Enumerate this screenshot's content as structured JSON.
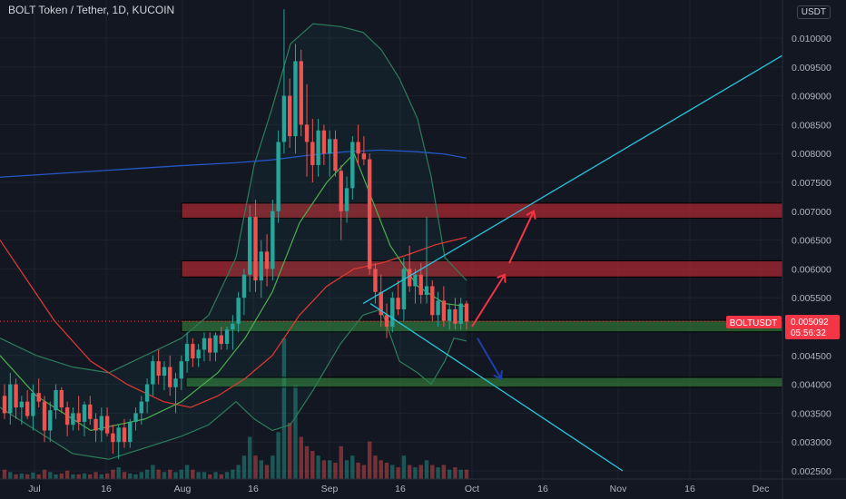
{
  "header": {
    "symbol_title": "BOLT Token / Tether, 1D, KUCOIN",
    "currency_button": "USDT"
  },
  "price_badge": {
    "symbol": "BOLTUSDT",
    "price": "0.005092",
    "countdown": "05:56:32"
  },
  "colors": {
    "background": "#131722",
    "up": "#26a69a",
    "down": "#ef5350",
    "resistance_zone": "#8b2a2e",
    "support_zone": "#2e6b2f",
    "trend_line": "#26c6da",
    "bear_arrow": "#1e3fae",
    "bull_arrow": "#f23645",
    "sma_200": "#2457c5",
    "ema_red": "#e53935",
    "ema_green": "#4caf50"
  },
  "chart_data": {
    "type": "candlestick",
    "y_axis": {
      "min": 0.0025,
      "max": 0.0105,
      "ticks": [
        "0.010000",
        "0.009500",
        "0.009000",
        "0.008500",
        "0.008000",
        "0.007500",
        "0.007000",
        "0.006500",
        "0.006000",
        "0.005500",
        "0.004500",
        "0.004000",
        "0.003500",
        "0.003000",
        "0.002500"
      ]
    },
    "x_axis": {
      "ticks": [
        "Jul",
        "16",
        "Aug",
        "16",
        "Sep",
        "16",
        "Oct",
        "16",
        "Nov",
        "16",
        "Dec"
      ]
    },
    "zones": [
      {
        "kind": "resistance",
        "from": 0.00688,
        "to": 0.00714
      },
      {
        "kind": "resistance",
        "from": 0.00586,
        "to": 0.00614
      },
      {
        "kind": "support",
        "from": 0.00491,
        "to": 0.00511
      },
      {
        "kind": "support",
        "from": 0.00395,
        "to": 0.00412
      }
    ],
    "candles_ohlc": [
      [
        0.0038,
        0.004,
        0.0034,
        0.0035
      ],
      [
        0.0035,
        0.0042,
        0.0033,
        0.004
      ],
      [
        0.004,
        0.0041,
        0.0034,
        0.0036
      ],
      [
        0.0036,
        0.0038,
        0.0033,
        0.0037
      ],
      [
        0.0037,
        0.0039,
        0.0034,
        0.00345
      ],
      [
        0.00345,
        0.004,
        0.0032,
        0.00385
      ],
      [
        0.00385,
        0.0041,
        0.0036,
        0.0037
      ],
      [
        0.0037,
        0.0038,
        0.003,
        0.0032
      ],
      [
        0.0032,
        0.0037,
        0.003,
        0.00355
      ],
      [
        0.00355,
        0.004,
        0.0034,
        0.0039
      ],
      [
        0.0039,
        0.00395,
        0.0035,
        0.0036
      ],
      [
        0.0036,
        0.0037,
        0.0031,
        0.0033
      ],
      [
        0.0033,
        0.0036,
        0.0032,
        0.0035
      ],
      [
        0.0035,
        0.0038,
        0.0032,
        0.00335
      ],
      [
        0.00335,
        0.0037,
        0.0031,
        0.00365
      ],
      [
        0.00365,
        0.0038,
        0.0033,
        0.0034
      ],
      [
        0.0034,
        0.0035,
        0.003,
        0.0032
      ],
      [
        0.0032,
        0.0036,
        0.003,
        0.00345
      ],
      [
        0.00345,
        0.0036,
        0.0031,
        0.00315
      ],
      [
        0.00315,
        0.0033,
        0.0028,
        0.003
      ],
      [
        0.003,
        0.0033,
        0.0027,
        0.00325
      ],
      [
        0.00325,
        0.0034,
        0.0029,
        0.003
      ],
      [
        0.003,
        0.0034,
        0.0029,
        0.00335
      ],
      [
        0.00335,
        0.0036,
        0.0032,
        0.0035
      ],
      [
        0.0035,
        0.0038,
        0.0033,
        0.0037
      ],
      [
        0.0037,
        0.0041,
        0.0035,
        0.004
      ],
      [
        0.004,
        0.0045,
        0.0038,
        0.0044
      ],
      [
        0.0044,
        0.0046,
        0.004,
        0.00415
      ],
      [
        0.00415,
        0.0044,
        0.0039,
        0.0043
      ],
      [
        0.0043,
        0.0045,
        0.0038,
        0.00395
      ],
      [
        0.00395,
        0.0042,
        0.0035,
        0.0041
      ],
      [
        0.0041,
        0.0045,
        0.0039,
        0.0044
      ],
      [
        0.0044,
        0.0049,
        0.0042,
        0.0047
      ],
      [
        0.0047,
        0.0048,
        0.0043,
        0.00445
      ],
      [
        0.00445,
        0.0047,
        0.0043,
        0.0046
      ],
      [
        0.0046,
        0.0049,
        0.0044,
        0.0048
      ],
      [
        0.0048,
        0.0049,
        0.0044,
        0.00455
      ],
      [
        0.00455,
        0.0049,
        0.0044,
        0.00485
      ],
      [
        0.00485,
        0.005,
        0.0046,
        0.0047
      ],
      [
        0.0047,
        0.005,
        0.0046,
        0.00495
      ],
      [
        0.00495,
        0.0052,
        0.0046,
        0.00505
      ],
      [
        0.00505,
        0.0056,
        0.0049,
        0.0055
      ],
      [
        0.0055,
        0.006,
        0.0052,
        0.0059
      ],
      [
        0.0059,
        0.0071,
        0.0056,
        0.0069
      ],
      [
        0.0069,
        0.0072,
        0.0056,
        0.0058
      ],
      [
        0.0058,
        0.0065,
        0.0055,
        0.0063
      ],
      [
        0.0063,
        0.0066,
        0.0057,
        0.006
      ],
      [
        0.006,
        0.0072,
        0.0058,
        0.007
      ],
      [
        0.007,
        0.0084,
        0.0068,
        0.0082
      ],
      [
        0.0082,
        0.0105,
        0.008,
        0.009
      ],
      [
        0.009,
        0.0093,
        0.0081,
        0.0083
      ],
      [
        0.0083,
        0.0099,
        0.008,
        0.0096
      ],
      [
        0.0096,
        0.0098,
        0.0083,
        0.0085
      ],
      [
        0.0085,
        0.0092,
        0.0076,
        0.0082
      ],
      [
        0.0082,
        0.0086,
        0.0075,
        0.0078
      ],
      [
        0.0078,
        0.0086,
        0.0076,
        0.0084
      ],
      [
        0.0084,
        0.0085,
        0.0078,
        0.008
      ],
      [
        0.008,
        0.0084,
        0.0076,
        0.00825
      ],
      [
        0.00825,
        0.0084,
        0.0076,
        0.0077
      ],
      [
        0.0077,
        0.0078,
        0.0065,
        0.007
      ],
      [
        0.007,
        0.0076,
        0.0068,
        0.0074
      ],
      [
        0.0074,
        0.0083,
        0.0072,
        0.0082
      ],
      [
        0.0082,
        0.0085,
        0.0078,
        0.008
      ],
      [
        0.008,
        0.0083,
        0.0078,
        0.0079
      ],
      [
        0.0079,
        0.008,
        0.0059,
        0.006
      ],
      [
        0.006,
        0.0061,
        0.0054,
        0.0056
      ],
      [
        0.0056,
        0.0059,
        0.005,
        0.0052
      ],
      [
        0.0052,
        0.0054,
        0.0048,
        0.005
      ],
      [
        0.005,
        0.0056,
        0.0049,
        0.0055
      ],
      [
        0.0055,
        0.0058,
        0.0052,
        0.0053
      ],
      [
        0.0053,
        0.0062,
        0.0051,
        0.006
      ],
      [
        0.006,
        0.0064,
        0.0056,
        0.0057
      ],
      [
        0.0057,
        0.006,
        0.0054,
        0.0059
      ],
      [
        0.0059,
        0.0061,
        0.0054,
        0.00555
      ],
      [
        0.00555,
        0.0069,
        0.0054,
        0.0057
      ],
      [
        0.0057,
        0.0058,
        0.0051,
        0.0052
      ],
      [
        0.0052,
        0.0056,
        0.005,
        0.00545
      ],
      [
        0.00545,
        0.0057,
        0.005,
        0.0051
      ],
      [
        0.0051,
        0.0054,
        0.00495,
        0.0053
      ],
      [
        0.0053,
        0.0055,
        0.00495,
        0.00505
      ],
      [
        0.00505,
        0.0055,
        0.00495,
        0.0054
      ],
      [
        0.0054,
        0.00545,
        0.00495,
        0.00509
      ]
    ],
    "volume": [
      0.2,
      0.15,
      0.1,
      0.12,
      0.1,
      0.14,
      0.1,
      0.2,
      0.15,
      0.1,
      0.12,
      0.18,
      0.1,
      0.1,
      0.12,
      0.1,
      0.15,
      0.1,
      0.12,
      0.2,
      0.25,
      0.15,
      0.12,
      0.1,
      0.15,
      0.2,
      0.3,
      0.2,
      0.15,
      0.2,
      0.15,
      0.2,
      0.3,
      0.2,
      0.15,
      0.15,
      0.1,
      0.15,
      0.1,
      0.15,
      0.2,
      0.3,
      0.5,
      0.9,
      0.5,
      0.4,
      0.3,
      0.5,
      1.0,
      3.0,
      1.2,
      2.0,
      0.9,
      0.7,
      0.6,
      0.5,
      0.4,
      0.4,
      0.35,
      0.7,
      0.4,
      0.5,
      0.35,
      0.3,
      0.8,
      0.5,
      0.4,
      0.35,
      0.3,
      0.25,
      0.5,
      0.3,
      0.25,
      0.3,
      0.4,
      0.3,
      0.25,
      0.3,
      0.2,
      0.25,
      0.2,
      0.2
    ],
    "sma_200": [
      [
        0,
        0.00759
      ],
      [
        40,
        0.00763
      ],
      [
        120,
        0.00771
      ],
      [
        200,
        0.00779
      ],
      [
        260,
        0.00784
      ],
      [
        300,
        0.00789
      ],
      [
        340,
        0.00797
      ],
      [
        380,
        0.00803
      ],
      [
        420,
        0.00806
      ],
      [
        460,
        0.00803
      ],
      [
        490,
        0.00799
      ],
      [
        514,
        0.00792
      ]
    ],
    "ema_red": [
      [
        0,
        0.0065
      ],
      [
        30,
        0.0058
      ],
      [
        60,
        0.0051
      ],
      [
        100,
        0.0044
      ],
      [
        140,
        0.004
      ],
      [
        180,
        0.0037
      ],
      [
        210,
        0.0036
      ],
      [
        240,
        0.0038
      ],
      [
        270,
        0.0041
      ],
      [
        300,
        0.0045
      ],
      [
        330,
        0.0052
      ],
      [
        360,
        0.0057
      ],
      [
        390,
        0.006
      ],
      [
        420,
        0.0061
      ],
      [
        450,
        0.00625
      ],
      [
        480,
        0.00642
      ],
      [
        514,
        0.00655
      ]
    ],
    "ema_green": [
      [
        0,
        0.0045
      ],
      [
        40,
        0.0038
      ],
      [
        100,
        0.0032
      ],
      [
        160,
        0.0034
      ],
      [
        200,
        0.0037
      ],
      [
        240,
        0.0042
      ],
      [
        270,
        0.0048
      ],
      [
        300,
        0.0056
      ],
      [
        330,
        0.0068
      ],
      [
        360,
        0.0075
      ],
      [
        390,
        0.008
      ],
      [
        410,
        0.0072
      ],
      [
        430,
        0.0064
      ],
      [
        460,
        0.0057
      ],
      [
        490,
        0.0054
      ],
      [
        514,
        0.00535
      ]
    ],
    "bb_upper": [
      [
        0,
        0.0048
      ],
      [
        40,
        0.0045
      ],
      [
        80,
        0.0043
      ],
      [
        120,
        0.0042
      ],
      [
        160,
        0.0045
      ],
      [
        200,
        0.0048
      ],
      [
        230,
        0.0052
      ],
      [
        260,
        0.0062
      ],
      [
        280,
        0.0078
      ],
      [
        300,
        0.0088
      ],
      [
        320,
        0.0099
      ],
      [
        345,
        0.01025
      ],
      [
        375,
        0.0102
      ],
      [
        400,
        0.0101
      ],
      [
        420,
        0.0098
      ],
      [
        440,
        0.0093
      ],
      [
        460,
        0.0086
      ],
      [
        475,
        0.0076
      ],
      [
        490,
        0.0062
      ],
      [
        514,
        0.0058
      ]
    ],
    "bb_lower": [
      [
        0,
        0.0036
      ],
      [
        40,
        0.0032
      ],
      [
        80,
        0.0028
      ],
      [
        120,
        0.0027
      ],
      [
        160,
        0.0029
      ],
      [
        200,
        0.0031
      ],
      [
        230,
        0.0033
      ],
      [
        260,
        0.0037
      ],
      [
        280,
        0.0034
      ],
      [
        300,
        0.0032
      ],
      [
        320,
        0.0033
      ],
      [
        345,
        0.0039
      ],
      [
        375,
        0.0047
      ],
      [
        400,
        0.0052
      ],
      [
        420,
        0.0053
      ],
      [
        440,
        0.0044
      ],
      [
        460,
        0.0042
      ],
      [
        475,
        0.004
      ],
      [
        490,
        0.0044
      ],
      [
        500,
        0.0048
      ],
      [
        514,
        0.00475
      ]
    ],
    "drawings": {
      "rising_trendline": [
        [
          400,
          0.0054
        ],
        [
          862,
          0.0097
        ]
      ],
      "falling_trendline": [
        [
          408,
          0.0054
        ],
        [
          686,
          0.0025
        ]
      ],
      "bull_arrow_1": [
        [
          520,
          0.005
        ],
        [
          556,
          0.0059
        ]
      ],
      "bull_arrow_2": [
        [
          561,
          0.0061
        ],
        [
          588,
          0.007
        ]
      ],
      "bear_arrow": [
        [
          526,
          0.0048
        ],
        [
          552,
          0.0041
        ]
      ]
    }
  }
}
